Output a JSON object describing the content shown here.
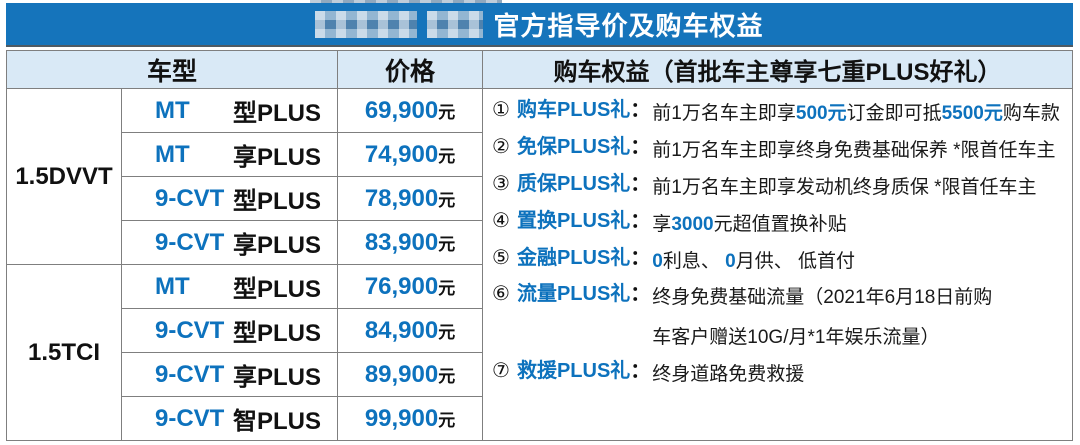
{
  "title": {
    "text": "官方指导价及购车权益"
  },
  "colors": {
    "title_bar_blue": "#1574bb",
    "header_light_blue": "#d9e9f6",
    "accent_blue_text": "#0d72bd",
    "grid_border_grey": "#7f7f7f"
  },
  "table": {
    "headers": {
      "model": "车型",
      "price": "价格",
      "benefits": "购车权益（首批车主尊享七重PLUS好礼）"
    },
    "price_unit": "元",
    "groups": [
      {
        "engine": "1.5DVVT",
        "rows": [
          {
            "transmission": "MT",
            "trim": "型PLUS",
            "price": "69,900"
          },
          {
            "transmission": "MT",
            "trim": "享PLUS",
            "price": "74,900"
          },
          {
            "transmission": "9-CVT",
            "trim": "型PLUS",
            "price": "78,900"
          },
          {
            "transmission": "9-CVT",
            "trim": "享PLUS",
            "price": "83,900"
          }
        ]
      },
      {
        "engine": "1.5TCI",
        "rows": [
          {
            "transmission": "MT",
            "trim": "型PLUS",
            "price": "76,900"
          },
          {
            "transmission": "9-CVT",
            "trim": "型PLUS",
            "price": "84,900"
          },
          {
            "transmission": "9-CVT",
            "trim": "享PLUS",
            "price": "89,900"
          },
          {
            "transmission": "9-CVT",
            "trim": "智PLUS",
            "price": "99,900"
          }
        ]
      }
    ],
    "benefits": [
      {
        "num": "①",
        "label": "购车PLUS礼",
        "colon": "：",
        "segments": [
          [
            "前1万名车主即享",
            "t"
          ],
          [
            "500元",
            "b"
          ],
          [
            "订金即可抵",
            "t"
          ],
          [
            "5500元",
            "b"
          ],
          [
            "购车款",
            "t"
          ]
        ]
      },
      {
        "num": "②",
        "label": "免保PLUS礼",
        "colon": "：",
        "segments": [
          [
            "前1万名车主即享终身免费基础保养 *限首任车主",
            "t"
          ]
        ]
      },
      {
        "num": "③",
        "label": "质保PLUS礼",
        "colon": "：",
        "segments": [
          [
            "前1万名车主即享发动机终身质保 *限首任车主",
            "t"
          ]
        ]
      },
      {
        "num": "④",
        "label": "置换PLUS礼",
        "colon": "：",
        "segments": [
          [
            "享",
            "t"
          ],
          [
            "3000",
            "b"
          ],
          [
            "元超值置换补贴",
            "t"
          ]
        ]
      },
      {
        "num": "⑤",
        "label": "金融PLUS礼",
        "colon": "：",
        "segments": [
          [
            "0",
            "b"
          ],
          [
            "利息、 ",
            "t"
          ],
          [
            "0",
            "b"
          ],
          [
            "月供、 低首付",
            "t"
          ]
        ]
      },
      {
        "num": "⑥",
        "label": "流量PLUS礼",
        "colon": "：",
        "segments": [
          [
            "终身免费基础流量（2021年6月18日前购",
            "t"
          ],
          [
            "BR",
            "br"
          ],
          [
            "车客户赠送10G/月*1年娱乐流量）",
            "t"
          ]
        ]
      },
      {
        "num": "⑦",
        "label": "救援PLUS礼",
        "colon": "：",
        "segments": [
          [
            "终身道路免费救援",
            "t"
          ]
        ]
      }
    ]
  }
}
